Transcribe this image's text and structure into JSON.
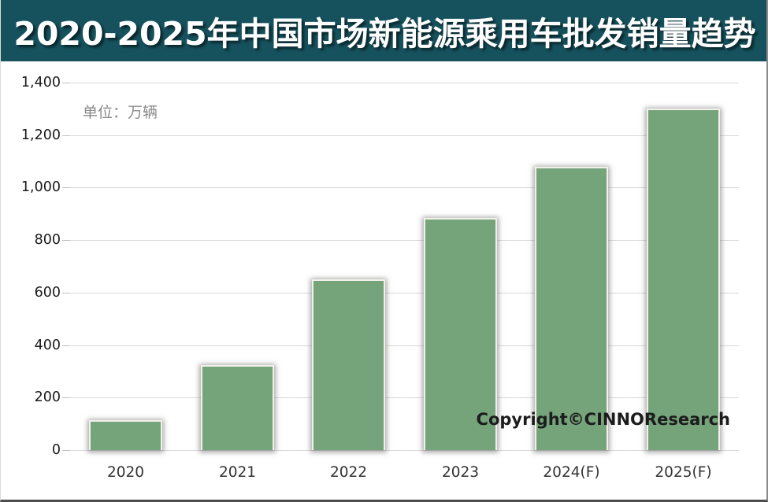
{
  "title": "2020-2025年中国市场新能源乘用车批发销量趋势",
  "unit_label": "单位：万辆",
  "copyright": "Copyright©CINNOResearch",
  "chart_data": {
    "type": "bar",
    "title": "2020-2025年中国市场新能源乘用车批发销量趋势",
    "categories": [
      "2020",
      "2021",
      "2022",
      "2023",
      "2024(F)",
      "2025(F)"
    ],
    "values": [
      115,
      325,
      650,
      885,
      1080,
      1300
    ],
    "xlabel": "",
    "ylabel": "单位：万辆",
    "ylim": [
      0,
      1400
    ],
    "ytick_interval": 200,
    "ytick_labels": [
      "1,400",
      "1,200",
      "1,000",
      "800",
      "600",
      "400",
      "200",
      "0"
    ],
    "grid": true,
    "legend": false
  },
  "colors": {
    "title_bar_bg": "#16525e",
    "title_text": "#ffffff",
    "bar_fill": "#75a47b",
    "bar_border": "#f1f0e9",
    "gridline": "#d9d9d9",
    "axis_text": "#1a1a1a",
    "unit_text": "#8a8a8a",
    "copyright_text": "#1c1c1c"
  }
}
